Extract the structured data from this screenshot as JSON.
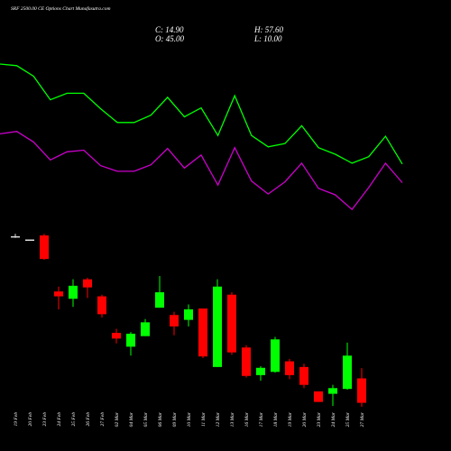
{
  "chart_data": {
    "type": "candlestick",
    "title": "SRF 2500.00 CE Options Chart Munafasutra.com",
    "annotations": [
      "C: 14.90",
      "H: 57.60",
      "O: 45.00",
      "L: 10.00"
    ],
    "categories": [
      "19 Feb",
      "20 Feb",
      "23 Feb",
      "24 Feb",
      "25 Feb",
      "26 Feb",
      "27 Feb",
      "02 Mar",
      "04 Mar",
      "05 Mar",
      "06 Mar",
      "09 Mar",
      "10 Mar",
      "11 Mar",
      "12 Mar",
      "13 Mar",
      "16 Mar",
      "17 Mar",
      "18 Mar",
      "19 Mar",
      "20 Mar",
      "23 Mar",
      "24 Mar",
      "25 Mar",
      "27 Mar"
    ],
    "open": [
      220,
      216,
      221,
      152,
      143,
      167,
      146,
      101,
      84,
      97,
      132,
      123,
      117,
      131,
      59,
      148,
      83,
      49,
      53,
      66,
      59,
      29,
      26,
      32,
      45
    ],
    "high": [
      223,
      216,
      223,
      158,
      167,
      169,
      148,
      106,
      102,
      118,
      171,
      127,
      136,
      131,
      167,
      151,
      86,
      60,
      96,
      69,
      63,
      29,
      37,
      89,
      57.6
    ],
    "low": [
      218,
      216,
      191,
      130,
      133,
      144,
      120,
      88,
      73,
      97,
      132,
      98,
      109,
      70,
      59,
      74,
      46,
      42,
      52,
      44,
      33,
      16,
      11,
      31,
      10
    ],
    "close": [
      220,
      216,
      192,
      146,
      159,
      157,
      124,
      94,
      100,
      114,
      151,
      109,
      130,
      72,
      158,
      77,
      48,
      58,
      93,
      49,
      37,
      16,
      33,
      73,
      14.9
    ],
    "up_color": "#00ff00",
    "down_color": "#ff0000",
    "flat_color": "#dddddd",
    "series": [
      {
        "color": "#00ff00",
        "values": [
          432,
          430,
          417,
          388,
          396,
          396,
          377,
          360,
          360,
          369,
          391,
          367,
          378,
          344,
          393,
          344,
          330,
          334,
          356,
          329,
          321,
          310,
          318,
          343,
          309
        ]
      },
      {
        "color": "#cc00cc",
        "values": [
          346,
          349,
          336,
          314,
          324,
          326,
          307,
          300,
          300,
          308,
          328,
          304,
          320,
          283,
          329,
          288,
          272,
          287,
          310,
          279,
          271,
          253,
          280,
          310,
          286
        ]
      }
    ]
  }
}
